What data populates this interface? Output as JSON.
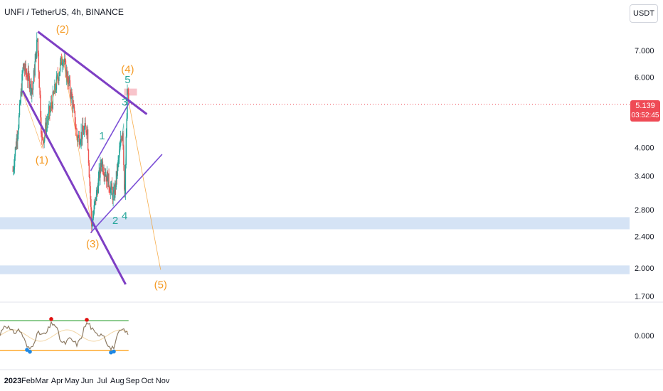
{
  "header": {
    "symbol_line": "UNFI / TetherUS, 4h, BINANCE",
    "unit_button": "USDT"
  },
  "colors": {
    "candle_up": "#26a69a",
    "candle_down": "#ef5350",
    "trendline": "#7e3fc4",
    "channel": "#7b4fd6",
    "wave_major": "#f59a23",
    "wave_minor": "#26a69a",
    "support_zone": "#d5e3f5",
    "resistance_zone": "#f8c4cb",
    "price_tag": "#ef4a55",
    "osc_upper": "#4caf50",
    "osc_lower": "#ff9800",
    "osc_line": "#8d7b64",
    "osc_dot_high": "#e01010",
    "osc_dot_low": "#1e88e5"
  },
  "price_tag": {
    "price": "5.139",
    "countdown": "03:52:45"
  },
  "chart_data": {
    "type": "candlestick",
    "title": "UNFI / TetherUS, 4h, BINANCE",
    "y_scale": "log",
    "ylim": [
      1.55,
      9.0
    ],
    "y_ticks": [
      "7.000",
      "6.000",
      "5.139",
      "4.000",
      "3.400",
      "2.800",
      "2.400",
      "2.000",
      "1.700"
    ],
    "x_ticks": [
      "2023",
      "Feb",
      "Mar",
      "Apr",
      "May",
      "Jun",
      "Jul",
      "Aug",
      "Sep",
      "Oct",
      "Nov"
    ],
    "price_path": [
      {
        "date": "2023-01-01",
        "price": 3.5
      },
      {
        "date": "2023-01-14",
        "price": 4.8
      },
      {
        "date": "2023-01-22",
        "price": 6.4
      },
      {
        "date": "2023-02-10",
        "price": 5.6
      },
      {
        "date": "2023-02-20",
        "price": 7.5
      },
      {
        "date": "2023-03-01",
        "price": 4.1
      },
      {
        "date": "2023-03-25",
        "price": 5.4
      },
      {
        "date": "2023-04-12",
        "price": 6.8
      },
      {
        "date": "2023-05-01",
        "price": 5.3
      },
      {
        "date": "2023-05-12",
        "price": 4.2
      },
      {
        "date": "2023-06-01",
        "price": 4.5
      },
      {
        "date": "2023-06-10",
        "price": 2.55
      },
      {
        "date": "2023-06-30",
        "price": 3.7
      },
      {
        "date": "2023-07-25",
        "price": 3.0
      },
      {
        "date": "2023-08-12",
        "price": 4.5
      },
      {
        "date": "2023-08-16",
        "price": 3.0
      },
      {
        "date": "2023-08-22",
        "price": 5.7
      },
      {
        "date": "2023-08-24",
        "price": 5.139
      }
    ],
    "zones": [
      {
        "kind": "support",
        "low": 2.5,
        "high": 2.68
      },
      {
        "kind": "support",
        "low": 1.93,
        "high": 2.03
      },
      {
        "kind": "resistance",
        "low": 5.4,
        "high": 5.62,
        "from": "2023-08-15",
        "to": "2023-09-10"
      }
    ],
    "trendlines": [
      {
        "name": "upper",
        "from": {
          "date": "2023-02-21",
          "price": 7.8
        },
        "to": {
          "date": "2023-09-30",
          "price": 4.85
        }
      },
      {
        "name": "lower",
        "from": {
          "date": "2023-01-21",
          "price": 5.55
        },
        "to": {
          "date": "2023-08-18",
          "price": 1.82
        }
      },
      {
        "name": "channel-top",
        "from": {
          "date": "2023-06-08",
          "price": 3.5
        },
        "to": {
          "date": "2023-08-28",
          "price": 5.25
        }
      },
      {
        "name": "channel-bottom",
        "from": {
          "date": "2023-06-08",
          "price": 2.45
        },
        "to": {
          "date": "2023-10-31",
          "price": 3.85
        }
      }
    ],
    "wave_labels": [
      {
        "text": "(1)",
        "date": "2023-03-01",
        "price": 3.65,
        "kind": "major"
      },
      {
        "text": "(2)",
        "date": "2023-04-12",
        "price": 7.75,
        "kind": "major"
      },
      {
        "text": "(3)",
        "date": "2023-06-12",
        "price": 2.25,
        "kind": "major"
      },
      {
        "text": "(4)",
        "date": "2023-08-22",
        "price": 6.15,
        "kind": "major"
      },
      {
        "text": "(5)",
        "date": "2023-10-28",
        "price": 1.78,
        "kind": "major"
      },
      {
        "text": "1",
        "date": "2023-07-01",
        "price": 4.2,
        "kind": "minor"
      },
      {
        "text": "2",
        "date": "2023-07-28",
        "price": 2.58,
        "kind": "minor"
      },
      {
        "text": "3",
        "date": "2023-08-16",
        "price": 5.1,
        "kind": "minor"
      },
      {
        "text": "4",
        "date": "2023-08-16",
        "price": 2.65,
        "kind": "minor"
      },
      {
        "text": "5",
        "date": "2023-08-22",
        "price": 5.8,
        "kind": "minor"
      }
    ],
    "projection": [
      {
        "date": "2023-08-25",
        "price": 5.15
      },
      {
        "date": "2023-10-28",
        "price": 1.98
      }
    ],
    "oscillator": {
      "upper_level": "green",
      "lower_level": "orange",
      "y_tick": "0.000"
    }
  }
}
